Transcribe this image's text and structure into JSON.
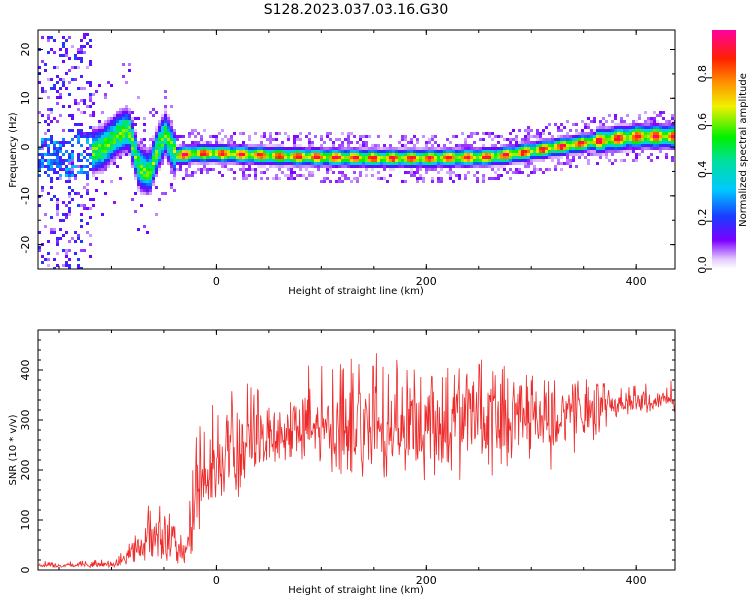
{
  "title": "S128.2023.037.03.16.G30",
  "colors": {
    "trace": "#ee2a2a",
    "spectrogram_bg": "#ffffff"
  },
  "chart_data": [
    {
      "type": "heatmap",
      "xlabel": "Height of straight line (km)",
      "ylabel": "Frequency (Hz)",
      "xlim": [
        -170,
        437
      ],
      "ylim": [
        -25,
        24
      ],
      "x_ticks": [
        0,
        200,
        400
      ],
      "x_tick_labels": [
        "0",
        "200",
        "400"
      ],
      "y_ticks": [
        -20,
        -10,
        0,
        10,
        20
      ],
      "y_tick_labels": [
        "-20",
        "-10",
        "0",
        "10",
        "20"
      ],
      "colorbar": {
        "label": "Normalized spectral amplitude",
        "range": [
          0,
          1
        ],
        "ticks": [
          0.0,
          0.2,
          0.4,
          0.6,
          0.8
        ],
        "tick_labels": [
          "0.0",
          "0.2",
          "0.4",
          "0.6",
          "0.8"
        ],
        "colormap": "rainbow (white-violet-blue-cyan-green-yellow-orange-red-magenta)"
      },
      "ridge_frequency": {
        "x": [
          -140,
          -110,
          -95,
          -85,
          -75,
          -65,
          -57,
          -50,
          -40,
          -20,
          0,
          50,
          100,
          150,
          200,
          250,
          270,
          300,
          330,
          360,
          400,
          437
        ],
        "y": [
          -2,
          0,
          3,
          4,
          -4,
          -5,
          0,
          3,
          -1.5,
          -1,
          -1,
          -1.5,
          -1.8,
          -2,
          -2,
          -1.8,
          -1.5,
          -0.5,
          0.5,
          1.5,
          2.5,
          2.5
        ]
      }
    },
    {
      "type": "line",
      "xlabel": "Height of straight line (km)",
      "ylabel": "SNR (10 * v/v)",
      "xlim": [
        -170,
        437
      ],
      "ylim": [
        0,
        480
      ],
      "x_ticks": [
        0,
        200,
        400
      ],
      "x_tick_labels": [
        "0",
        "200",
        "400"
      ],
      "y_ticks": [
        0,
        100,
        200,
        300,
        400
      ],
      "y_tick_labels": [
        "0",
        "100",
        "200",
        "300",
        "400"
      ],
      "series_envelope": {
        "x": [
          -170,
          -120,
          -95,
          -85,
          -70,
          -55,
          -45,
          -30,
          -20,
          -10,
          0,
          20,
          40,
          60,
          80,
          100,
          140,
          200,
          260,
          320,
          360,
          380,
          400,
          437
        ],
        "mean": [
          10,
          10,
          12,
          30,
          50,
          80,
          60,
          20,
          150,
          190,
          200,
          230,
          255,
          270,
          280,
          285,
          290,
          295,
          300,
          300,
          320,
          330,
          335,
          340
        ],
        "low": [
          5,
          5,
          6,
          10,
          15,
          25,
          15,
          5,
          40,
          110,
          120,
          140,
          180,
          200,
          210,
          200,
          180,
          170,
          185,
          200,
          260,
          300,
          310,
          315
        ],
        "high": [
          18,
          20,
          25,
          55,
          95,
          200,
          120,
          60,
          310,
          330,
          350,
          380,
          390,
          400,
          420,
          420,
          440,
          430,
          420,
          410,
          380,
          370,
          375,
          380
        ]
      }
    }
  ]
}
